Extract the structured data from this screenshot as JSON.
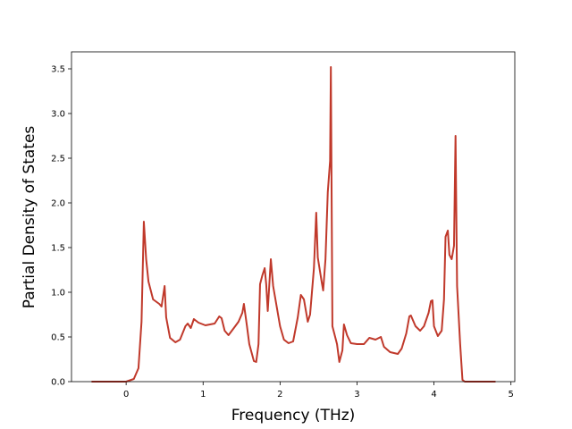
{
  "chart_data": {
    "type": "line",
    "x_label": "Frequency (THz)",
    "y_label": "Partial Density of States",
    "color": "#c0392b",
    "xlim": [
      -0.71,
      5.05
    ],
    "ylim": [
      0,
      3.69
    ],
    "xticks": [
      0,
      1,
      2,
      3,
      4,
      5
    ],
    "yticks": [
      {
        "value": 0,
        "label": "0.0"
      },
      0.5,
      {
        "value": 1,
        "label": "1.0"
      },
      1.5,
      {
        "value": 2,
        "label": "2.0"
      },
      2.5,
      {
        "value": 3,
        "label": "3.0"
      },
      3.5
    ],
    "x": [
      -0.45,
      0,
      0.1,
      0.16,
      0.2,
      0.23,
      0.26,
      0.29,
      0.35,
      0.43,
      0.46,
      0.5,
      0.52,
      0.57,
      0.64,
      0.7,
      0.77,
      0.8,
      0.84,
      0.88,
      0.94,
      1.03,
      1.15,
      1.21,
      1.24,
      1.28,
      1.33,
      1.4,
      1.46,
      1.51,
      1.53,
      1.57,
      1.6,
      1.66,
      1.69,
      1.72,
      1.74,
      1.77,
      1.8,
      1.82,
      1.84,
      1.88,
      1.91,
      1.95,
      2.0,
      2.05,
      2.11,
      2.17,
      2.23,
      2.27,
      2.31,
      2.36,
      2.39,
      2.44,
      2.47,
      2.49,
      2.54,
      2.56,
      2.59,
      2.62,
      2.65,
      2.66,
      2.68,
      2.74,
      2.77,
      2.81,
      2.83,
      2.87,
      2.92,
      3.0,
      3.09,
      3.16,
      3.24,
      3.31,
      3.35,
      3.43,
      3.53,
      3.58,
      3.64,
      3.68,
      3.7,
      3.76,
      3.82,
      3.87,
      3.93,
      3.96,
      3.98,
      4.0,
      4.05,
      4.1,
      4.13,
      4.15,
      4.18,
      4.2,
      4.23,
      4.26,
      4.28,
      4.3,
      4.34,
      4.37,
      4.4,
      4.8
    ],
    "values": [
      0,
      0,
      0.03,
      0.15,
      0.67,
      1.79,
      1.37,
      1.12,
      0.92,
      0.87,
      0.84,
      1.07,
      0.72,
      0.49,
      0.44,
      0.47,
      0.62,
      0.65,
      0.6,
      0.7,
      0.66,
      0.63,
      0.65,
      0.73,
      0.71,
      0.57,
      0.52,
      0.6,
      0.67,
      0.77,
      0.87,
      0.62,
      0.42,
      0.23,
      0.22,
      0.42,
      1.09,
      1.19,
      1.27,
      1.09,
      0.79,
      1.37,
      1.07,
      0.87,
      0.62,
      0.47,
      0.43,
      0.45,
      0.72,
      0.97,
      0.92,
      0.67,
      0.75,
      1.27,
      1.89,
      1.39,
      1.12,
      1.02,
      1.37,
      2.12,
      2.47,
      3.52,
      0.62,
      0.42,
      0.22,
      0.35,
      0.64,
      0.52,
      0.43,
      0.42,
      0.42,
      0.49,
      0.47,
      0.5,
      0.39,
      0.33,
      0.31,
      0.37,
      0.54,
      0.73,
      0.74,
      0.62,
      0.57,
      0.62,
      0.77,
      0.9,
      0.91,
      0.62,
      0.51,
      0.57,
      0.92,
      1.62,
      1.69,
      1.42,
      1.37,
      1.52,
      2.75,
      1.07,
      0.42,
      0.02,
      0,
      0
    ]
  }
}
